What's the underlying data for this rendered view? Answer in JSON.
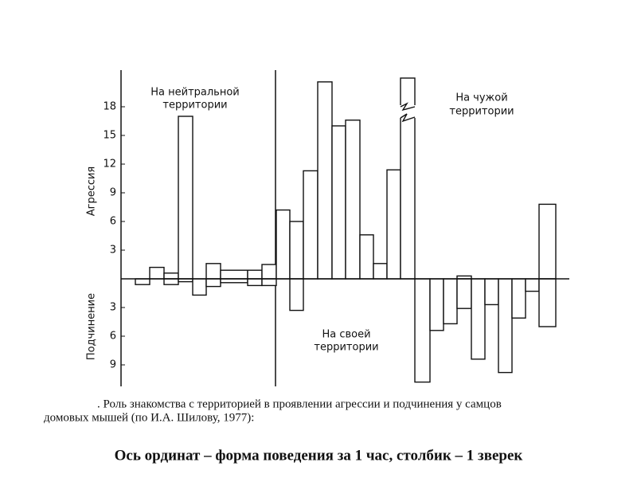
{
  "chart_data": {
    "type": "bar",
    "annotations": [
      "На нейтральной",
      "территории",
      "На своей",
      "территории",
      "На чужой",
      "территории"
    ],
    "y_labels": [
      "Агрессия",
      "Подчинение"
    ],
    "caption": [
      ". Роль знакомства с территорией в проявлении агрессии и подчинения у самцов",
      "домовых мышей (по И.А. Шилову, 1977):"
    ],
    "footer": "Ось ординат – форма поведения за 1 час, столбик – 1 зверек",
    "categories": [
      null,
      null,
      null,
      null,
      null,
      null,
      null,
      null,
      null,
      null,
      null,
      null,
      null,
      null,
      null,
      null,
      null,
      null,
      null,
      null,
      null,
      null,
      null,
      null,
      null,
      null,
      null,
      null,
      null
    ],
    "series": [
      {
        "color": "#ffffff",
        "values": [
          0,
          1.2,
          0.6,
          17,
          0,
          1.6,
          0.9,
          0.9,
          1.5,
          7.2,
          6,
          11.3,
          20.6,
          16,
          16.6,
          4.6,
          1.6,
          11.4,
          21,
          0,
          0,
          0,
          0.3,
          0,
          0,
          0,
          0,
          0,
          7.8
        ]
      },
      {
        "color": "#ffffff",
        "values": [
          -0.6,
          0,
          -0.6,
          -0.3,
          -1.7,
          -0.8,
          -0.4,
          -0.7,
          -0.7,
          0,
          -3.3,
          0,
          0,
          0,
          0,
          0,
          0,
          0,
          0,
          -10.8,
          -5.4,
          -4.7,
          -3.1,
          -8.4,
          -2.7,
          -9.8,
          -4.1,
          -1.3,
          -5
        ]
      }
    ],
    "ylim": [
      -12,
      22
    ],
    "yticks": [
      {
        "value": -9,
        "label": "9"
      },
      {
        "value": -6,
        "label": "6"
      },
      {
        "value": -3,
        "label": "3"
      },
      3,
      6,
      9,
      12,
      15,
      18
    ]
  }
}
